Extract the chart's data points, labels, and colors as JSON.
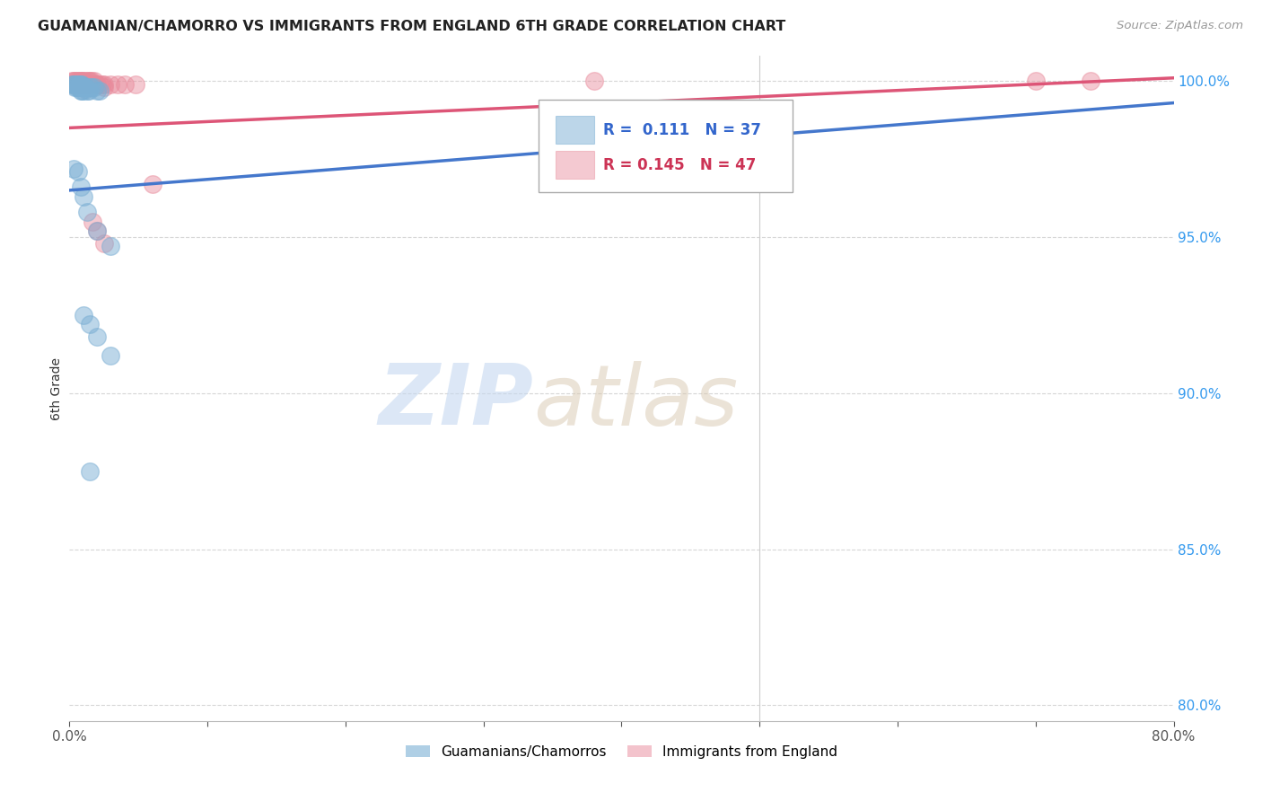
{
  "title": "GUAMANIAN/CHAMORRO VS IMMIGRANTS FROM ENGLAND 6TH GRADE CORRELATION CHART",
  "source": "Source: ZipAtlas.com",
  "ylabel": "6th Grade",
  "xlim": [
    0.0,
    0.8
  ],
  "ylim": [
    0.795,
    1.008
  ],
  "xticks": [
    0.0,
    0.1,
    0.2,
    0.3,
    0.4,
    0.5,
    0.6,
    0.7,
    0.8
  ],
  "xticklabels": [
    "0.0%",
    "",
    "",
    "",
    "",
    "",
    "",
    "",
    "80.0%"
  ],
  "yticks": [
    0.8,
    0.85,
    0.9,
    0.95,
    1.0
  ],
  "yticklabels": [
    "80.0%",
    "85.0%",
    "90.0%",
    "95.0%",
    "100.0%"
  ],
  "grid_color": "#cccccc",
  "background_color": "#ffffff",
  "blue_color": "#7bafd4",
  "pink_color": "#e8899a",
  "blue_line_color": "#4477cc",
  "pink_line_color": "#dd5577",
  "R_blue": 0.111,
  "N_blue": 37,
  "R_pink": 0.145,
  "N_pink": 47,
  "legend_label_blue": "Guamanians/Chamorros",
  "legend_label_pink": "Immigrants from England",
  "watermark_zip": "ZIP",
  "watermark_atlas": "atlas",
  "blue_scatter_x": [
    0.002,
    0.003,
    0.004,
    0.004,
    0.005,
    0.005,
    0.006,
    0.006,
    0.007,
    0.007,
    0.008,
    0.008,
    0.009,
    0.009,
    0.01,
    0.01,
    0.011,
    0.012,
    0.013,
    0.014,
    0.015,
    0.016,
    0.018,
    0.02,
    0.022,
    0.003,
    0.006,
    0.008,
    0.01,
    0.013,
    0.02,
    0.03,
    0.01,
    0.015,
    0.02,
    0.03,
    0.015
  ],
  "blue_scatter_y": [
    0.999,
    0.999,
    0.999,
    0.998,
    0.999,
    0.998,
    0.999,
    0.998,
    0.999,
    0.998,
    0.999,
    0.997,
    0.999,
    0.997,
    0.998,
    0.997,
    0.998,
    0.998,
    0.997,
    0.997,
    0.998,
    0.998,
    0.998,
    0.997,
    0.997,
    0.972,
    0.971,
    0.966,
    0.963,
    0.958,
    0.952,
    0.947,
    0.925,
    0.922,
    0.918,
    0.912,
    0.875
  ],
  "pink_scatter_x": [
    0.002,
    0.003,
    0.003,
    0.004,
    0.004,
    0.005,
    0.005,
    0.006,
    0.006,
    0.007,
    0.007,
    0.008,
    0.008,
    0.009,
    0.009,
    0.01,
    0.01,
    0.011,
    0.012,
    0.013,
    0.013,
    0.014,
    0.015,
    0.016,
    0.017,
    0.018,
    0.02,
    0.022,
    0.024,
    0.008,
    0.01,
    0.012,
    0.014,
    0.02,
    0.025,
    0.025,
    0.03,
    0.035,
    0.04,
    0.048,
    0.06,
    0.38,
    0.7,
    0.74,
    0.017,
    0.02,
    0.025
  ],
  "pink_scatter_y": [
    1.0,
    1.0,
    0.999,
    1.0,
    0.999,
    1.0,
    0.999,
    1.0,
    0.999,
    1.0,
    0.999,
    1.0,
    0.999,
    1.0,
    0.999,
    1.0,
    0.999,
    1.0,
    0.999,
    1.0,
    0.999,
    1.0,
    1.0,
    1.0,
    0.999,
    1.0,
    0.999,
    0.999,
    0.999,
    0.999,
    0.999,
    0.999,
    0.999,
    0.999,
    0.999,
    0.998,
    0.999,
    0.999,
    0.999,
    0.999,
    0.967,
    1.0,
    1.0,
    1.0,
    0.955,
    0.952,
    0.948
  ],
  "blue_line_x0": 0.0,
  "blue_line_x1": 0.8,
  "blue_line_y0": 0.965,
  "blue_line_y1": 0.993,
  "pink_line_x0": 0.0,
  "pink_line_x1": 0.8,
  "pink_line_y0": 0.985,
  "pink_line_y1": 1.001
}
